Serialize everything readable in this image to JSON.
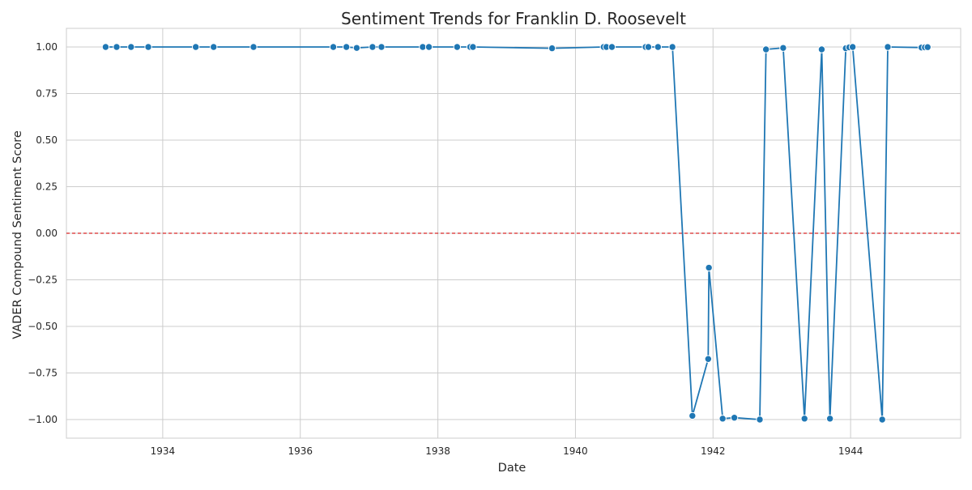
{
  "chart_data": {
    "type": "line",
    "title": "Sentiment Trends for Franklin D. Roosevelt",
    "xlabel": "Date",
    "ylabel": "VADER Compound Sentiment Score",
    "xlim": [
      1932.6,
      1945.6
    ],
    "ylim": [
      -1.1,
      1.1
    ],
    "x_ticks": [
      1934,
      1936,
      1938,
      1940,
      1942,
      1944
    ],
    "x_tick_labels": [
      "1934",
      "1936",
      "1938",
      "1940",
      "1942",
      "1944"
    ],
    "y_ticks": [
      1.0,
      0.75,
      0.5,
      0.25,
      0.0,
      -0.25,
      -0.5,
      -0.75,
      -1.0
    ],
    "y_tick_labels": [
      "1.00",
      "0.75",
      "0.50",
      "0.25",
      "0.00",
      "−0.25",
      "−0.50",
      "−0.75",
      "−1.00"
    ],
    "grid": true,
    "reference_line": {
      "y": 0.0,
      "style": "dashed",
      "color": "#d62728"
    },
    "series": [
      {
        "color": "#1f77b4",
        "marker": "circle",
        "x": [
          1933.17,
          1933.33,
          1933.54,
          1933.79,
          1934.48,
          1934.74,
          1935.32,
          1936.48,
          1936.67,
          1936.82,
          1937.05,
          1937.18,
          1937.78,
          1937.87,
          1938.28,
          1938.47,
          1938.51,
          1939.66,
          1940.41,
          1940.45,
          1940.53,
          1941.02,
          1941.06,
          1941.2,
          1941.41,
          1941.7,
          1941.93,
          1941.94,
          1942.14,
          1942.31,
          1942.68,
          1942.77,
          1943.02,
          1943.33,
          1943.58,
          1943.7,
          1943.93,
          1943.98,
          1944.03,
          1944.46,
          1944.54,
          1945.03,
          1945.08,
          1945.12
        ],
        "y": [
          1.0,
          1.0,
          1.0,
          1.0,
          1.0,
          1.0,
          1.0,
          1.0,
          1.0,
          0.995,
          1.0,
          1.0,
          1.0,
          1.0,
          1.0,
          1.0,
          1.0,
          0.993,
          1.0,
          1.0,
          1.0,
          1.0,
          1.0,
          1.0,
          1.0,
          -0.98,
          -0.675,
          -0.185,
          -0.995,
          -0.99,
          -1.0,
          0.987,
          0.995,
          -0.995,
          0.987,
          -0.995,
          0.993,
          0.998,
          1.0,
          -1.0,
          1.0,
          0.997,
          0.998,
          0.999
        ]
      }
    ]
  }
}
